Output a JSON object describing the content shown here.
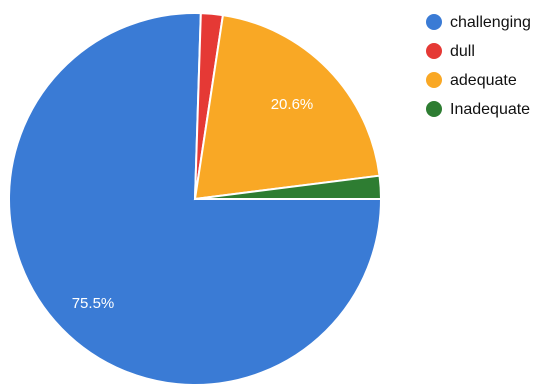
{
  "chart_data": {
    "type": "pie",
    "title": "",
    "categories": [
      "challenging",
      "dull",
      "adequate",
      "inadequate"
    ],
    "values": [
      75.5,
      1.9,
      20.6,
      2.0
    ],
    "colors": [
      "#3a7bd5",
      "#e53935",
      "#f9a825",
      "#2e7d32"
    ],
    "data_labels": [
      "75.5%",
      "",
      "20.6%",
      ""
    ],
    "legend": {
      "placement": "top-right",
      "entries": [
        "challenging",
        "dull",
        "adequate",
        "Inadequate"
      ]
    }
  }
}
